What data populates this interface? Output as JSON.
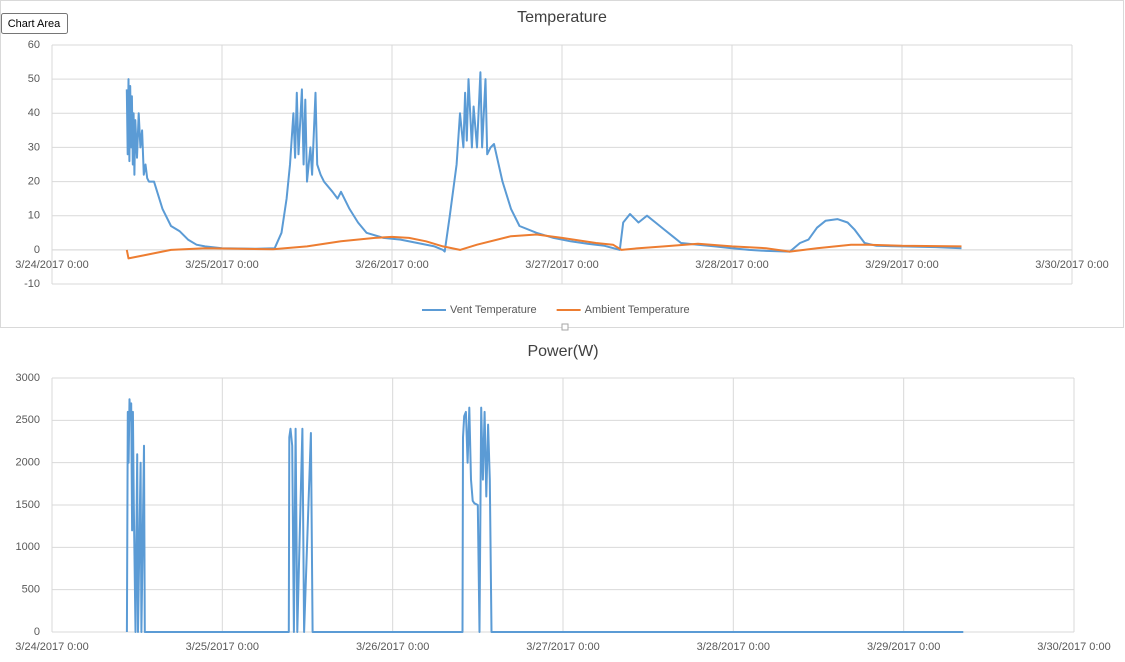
{
  "tooltip": "Chart Area",
  "chart_data": [
    {
      "type": "line",
      "title": "Temperature",
      "legend": "bottom",
      "grid": true,
      "xlim": [
        0,
        6
      ],
      "xticks": [
        {
          "value": 0,
          "label": "3/24/2017 0:00"
        },
        {
          "value": 1,
          "label": "3/25/2017 0:00"
        },
        {
          "value": 2,
          "label": "3/26/2017 0:00"
        },
        {
          "value": 3,
          "label": "3/27/2017 0:00"
        },
        {
          "value": 4,
          "label": "3/28/2017 0:00"
        },
        {
          "value": 5,
          "label": "3/29/2017 0:00"
        },
        {
          "value": 6,
          "label": "3/30/2017 0:00"
        }
      ],
      "ylim": [
        -10,
        60
      ],
      "yticks": [
        -10,
        0,
        10,
        20,
        30,
        40,
        50,
        60
      ],
      "series": [
        {
          "name": "Vent Temperature",
          "color": "#5b9bd5",
          "x": [
            0.44,
            0.445,
            0.45,
            0.455,
            0.46,
            0.465,
            0.47,
            0.475,
            0.48,
            0.485,
            0.49,
            0.5,
            0.51,
            0.52,
            0.53,
            0.54,
            0.55,
            0.56,
            0.57,
            0.6,
            0.65,
            0.7,
            0.75,
            0.8,
            0.85,
            0.9,
            1.0,
            1.2,
            1.31,
            1.35,
            1.38,
            1.4,
            1.42,
            1.43,
            1.44,
            1.45,
            1.47,
            1.48,
            1.49,
            1.5,
            1.52,
            1.53,
            1.55,
            1.56,
            1.58,
            1.6,
            1.65,
            1.68,
            1.7,
            1.75,
            1.8,
            1.85,
            1.95,
            2.05,
            2.15,
            2.25,
            2.3,
            2.31,
            2.34,
            2.38,
            2.4,
            2.42,
            2.43,
            2.44,
            2.45,
            2.47,
            2.48,
            2.5,
            2.52,
            2.53,
            2.55,
            2.56,
            2.58,
            2.6,
            2.65,
            2.7,
            2.75,
            2.85,
            2.95,
            3.05,
            3.15,
            3.25,
            3.34,
            3.36,
            3.4,
            3.45,
            3.5,
            3.55,
            3.6,
            3.65,
            3.7,
            3.8,
            3.9,
            4.0,
            4.1,
            4.2,
            4.34,
            4.4,
            4.45,
            4.5,
            4.55,
            4.62,
            4.68,
            4.72,
            4.78,
            4.85,
            5.0,
            5.2,
            5.35
          ],
          "values": [
            47,
            28,
            50,
            26,
            48,
            30,
            45,
            25,
            40,
            22,
            38,
            27,
            40,
            30,
            35,
            22,
            25,
            21,
            20,
            20,
            12,
            7,
            5.5,
            3,
            1.5,
            1,
            0.5,
            0.3,
            0.5,
            5,
            15,
            25,
            40,
            27,
            46,
            28,
            47,
            25,
            44,
            20,
            30,
            22,
            46,
            25,
            22,
            20,
            17,
            15,
            17,
            12,
            8,
            5,
            3.5,
            3,
            2,
            1,
            0,
            -0.5,
            10,
            25,
            40,
            30,
            46,
            32,
            50,
            30,
            42,
            30,
            52,
            30,
            50,
            28,
            30,
            31,
            20,
            12,
            7,
            5,
            3.5,
            2.5,
            1.8,
            1.2,
            0,
            8,
            10.5,
            8,
            10,
            8,
            6,
            4,
            2,
            1.5,
            1,
            0.5,
            0,
            -0.3,
            -0.5,
            2,
            3,
            6.5,
            8.5,
            9,
            8,
            6,
            2,
            1.2,
            1,
            0.8,
            0.5
          ]
        },
        {
          "name": "Ambient Temperature",
          "color": "#ed7d31",
          "x": [
            0.44,
            0.45,
            0.55,
            0.7,
            0.9,
            1.1,
            1.3,
            1.5,
            1.7,
            1.9,
            2.0,
            2.1,
            2.2,
            2.3,
            2.4,
            2.5,
            2.7,
            2.85,
            3.0,
            3.2,
            3.3,
            3.35,
            3.45,
            3.6,
            3.8,
            4.0,
            4.2,
            4.34,
            4.5,
            4.7,
            4.8,
            5.0,
            5.35
          ],
          "values": [
            0,
            -2.5,
            -1.5,
            0,
            0.5,
            0.3,
            0.2,
            1,
            2.5,
            3.5,
            3.8,
            3.5,
            2.5,
            1,
            0,
            1.5,
            4,
            4.5,
            3.5,
            2,
            1.5,
            0,
            0.5,
            1,
            1.8,
            1,
            0.5,
            -0.5,
            0.5,
            1.5,
            1.5,
            1.2,
            1
          ]
        }
      ]
    },
    {
      "type": "line",
      "title": "Power(W)",
      "grid": true,
      "xlim": [
        0,
        6
      ],
      "xticks": [
        {
          "value": 0,
          "label": "3/24/2017 0:00"
        },
        {
          "value": 1,
          "label": "3/25/2017 0:00"
        },
        {
          "value": 2,
          "label": "3/26/2017 0:00"
        },
        {
          "value": 3,
          "label": "3/27/2017 0:00"
        },
        {
          "value": 4,
          "label": "3/28/2017 0:00"
        },
        {
          "value": 5,
          "label": "3/29/2017 0:00"
        },
        {
          "value": 6,
          "label": "3/30/2017 0:00"
        }
      ],
      "ylim": [
        0,
        3000
      ],
      "yticks": [
        0,
        500,
        1000,
        1500,
        2000,
        2500,
        3000
      ],
      "series": [
        {
          "color": "#5b9bd5",
          "x": [
            0.44,
            0.445,
            0.45,
            0.455,
            0.46,
            0.465,
            0.47,
            0.475,
            0.48,
            0.49,
            0.5,
            0.505,
            0.52,
            0.525,
            0.54,
            0.545,
            1.39,
            1.393,
            1.4,
            1.41,
            1.42,
            1.43,
            1.44,
            1.47,
            1.48,
            1.52,
            1.53,
            2.41,
            2.413,
            2.42,
            2.43,
            2.44,
            2.45,
            2.46,
            2.47,
            2.48,
            2.5,
            2.51,
            2.52,
            2.53,
            2.54,
            2.55,
            2.56,
            2.57,
            2.58,
            5.35
          ],
          "values": [
            0,
            2600,
            2000,
            2750,
            2500,
            2700,
            1200,
            2600,
            1500,
            0,
            2100,
            0,
            2000,
            0,
            2200,
            0,
            0,
            2300,
            2400,
            2200,
            0,
            2400,
            0,
            2400,
            0,
            2350,
            0,
            0,
            2300,
            2550,
            2600,
            2000,
            2650,
            1800,
            1550,
            1520,
            1500,
            0,
            2650,
            1800,
            2600,
            1600,
            2450,
            1800,
            0,
            0
          ]
        }
      ]
    }
  ]
}
